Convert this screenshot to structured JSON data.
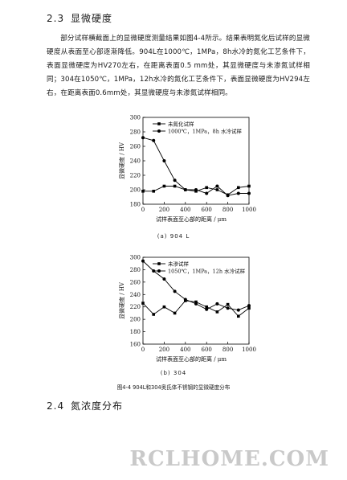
{
  "section1": {
    "number": "2.3",
    "title": "显微硬度"
  },
  "paragraph": "部分试样横截面上的显微硬度测量结果如图4-4所示。结果表明氮化后试样的显微硬度从表面至心部逐渐降低。904L在1000℃，1MPa，8h水冷的氮化工艺条件下，表面显微硬度为HV270左右，在距离表面0.5 mm处，其显微硬度与未渗氮试样相同；304在1050℃，1MPa，12h水冷的氮化工艺条件下，表面显微硬度为HV294左右，在距离表面0.6mm处，其显微硬度与未渗氮试样相同。",
  "chart_data": [
    {
      "type": "line",
      "x": [
        0,
        100,
        200,
        300,
        400,
        500,
        600,
        700,
        800,
        900,
        1000
      ],
      "series": [
        {
          "name": "未氮化试样",
          "marker": "square",
          "values": [
            198,
            198,
            205,
            205,
            200,
            198,
            203,
            200,
            193,
            203,
            205
          ]
        },
        {
          "name": "1000℃，1MPa，8h 水冷试样",
          "marker": "circle",
          "values": [
            272,
            268,
            240,
            213,
            200,
            200,
            195,
            205,
            192,
            195,
            195
          ]
        }
      ],
      "xlim": [
        0,
        1000
      ],
      "ylim": [
        180,
        300
      ],
      "xticks": [
        0,
        200,
        400,
        600,
        800,
        1000
      ],
      "yticks": [
        180,
        200,
        220,
        240,
        260,
        280,
        300
      ],
      "xlabel": "试样表面至心部的距离 / μm",
      "ylabel": "显微硬度 / HV",
      "legend_position": "top-right",
      "caption": "(a) 904 L"
    },
    {
      "type": "line",
      "x": [
        0,
        100,
        200,
        300,
        400,
        500,
        600,
        700,
        800,
        900,
        1000
      ],
      "series": [
        {
          "name": "未渗试样",
          "marker": "square",
          "values": [
            226,
            208,
            220,
            210,
            230,
            228,
            220,
            212,
            224,
            205,
            218
          ]
        },
        {
          "name": "1050℃，1MPa，12h 水冷试样",
          "marker": "circle",
          "values": [
            294,
            278,
            265,
            245,
            232,
            225,
            216,
            225,
            218,
            215,
            222
          ]
        }
      ],
      "xlim": [
        0,
        1000
      ],
      "ylim": [
        160,
        300
      ],
      "xticks": [
        0,
        200,
        400,
        600,
        800,
        1000
      ],
      "yticks": [
        160,
        180,
        200,
        220,
        240,
        260,
        280,
        300
      ],
      "xlabel": "试样表面至心部的距离 / μm",
      "ylabel": "显微硬度 / HV",
      "legend_position": "top-right",
      "caption": "(b) 304"
    }
  ],
  "figure_caption": "图4-4 904L和304奥氏体不锈钢的显微硬度分布",
  "section2": {
    "number": "2.4",
    "title": "氮浓度分布"
  },
  "watermark": "RCLHOME.COM"
}
